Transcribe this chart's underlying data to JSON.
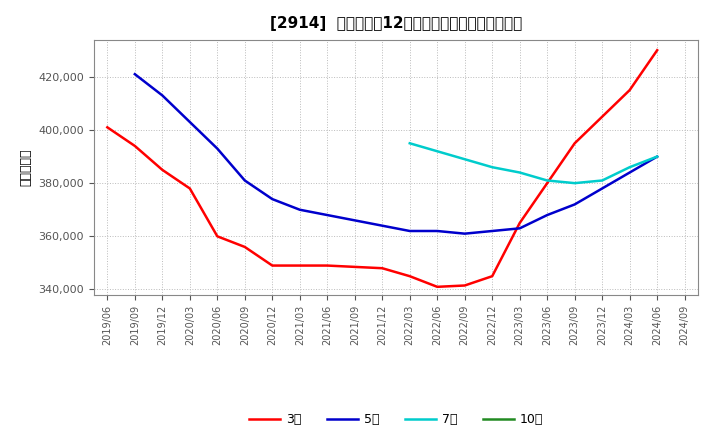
{
  "title": "[2914]  当期純利益12か月移動合計の平均値の推移",
  "ylabel": "（百万円）",
  "ylim": [
    338000,
    434000
  ],
  "yticks": [
    340000,
    360000,
    380000,
    400000,
    420000
  ],
  "background_color": "#ffffff",
  "plot_bg_color": "#ffffff",
  "grid_color": "#bbbbbb",
  "line_3y_color": "#ff0000",
  "line_5y_color": "#0000cc",
  "line_7y_color": "#00cccc",
  "line_10y_color": "#228B22",
  "legend_labels": [
    "3年",
    "5年",
    "7年",
    "10年"
  ],
  "x_labels": [
    "2019/06",
    "2019/09",
    "2019/12",
    "2020/03",
    "2020/06",
    "2020/09",
    "2020/12",
    "2021/03",
    "2021/06",
    "2021/09",
    "2021/12",
    "2022/03",
    "2022/06",
    "2022/09",
    "2022/12",
    "2023/03",
    "2023/06",
    "2023/09",
    "2023/12",
    "2024/03",
    "2024/06",
    "2024/09"
  ],
  "series_3y": {
    "x_idx": [
      0,
      1,
      2,
      3,
      4,
      5,
      6,
      7,
      8,
      9,
      10,
      11,
      12,
      13,
      14,
      15,
      16,
      17,
      18,
      19,
      20
    ],
    "y": [
      401000,
      394000,
      385000,
      378000,
      360000,
      356000,
      349000,
      349000,
      349000,
      348500,
      348000,
      345000,
      341000,
      341500,
      345000,
      365000,
      380000,
      395000,
      405000,
      415000,
      430000
    ]
  },
  "series_5y": {
    "x_idx": [
      1,
      2,
      3,
      4,
      5,
      6,
      7,
      8,
      9,
      10,
      11,
      12,
      13,
      14,
      15,
      16,
      17,
      18,
      19,
      20
    ],
    "y": [
      421000,
      413000,
      403000,
      393000,
      381000,
      374000,
      370000,
      368000,
      366000,
      364000,
      362000,
      362000,
      361000,
      362000,
      363000,
      368000,
      372000,
      378000,
      384000,
      390000
    ]
  },
  "series_7y": {
    "x_idx": [
      11,
      12,
      13,
      14,
      15,
      16,
      17,
      18,
      19,
      20
    ],
    "y": [
      395000,
      392000,
      389000,
      386000,
      384000,
      381000,
      380000,
      381000,
      386000,
      390000
    ]
  },
  "series_10y": {
    "x_idx": [],
    "y": []
  }
}
